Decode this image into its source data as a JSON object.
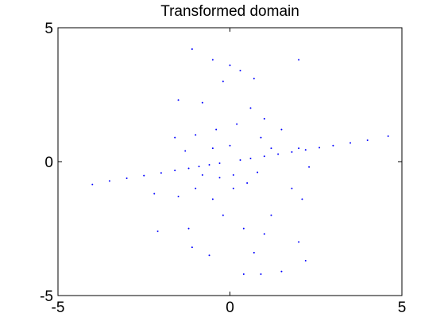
{
  "chart_data": {
    "type": "scatter",
    "title": "Transformed domain",
    "xlabel": "",
    "ylabel": "",
    "xlim": [
      -5,
      5
    ],
    "ylim": [
      -5,
      5
    ],
    "grid": false,
    "colors": {
      "points": "#0000ff",
      "axes": "#000000",
      "background": "#ffffff"
    },
    "xticks": [
      {
        "value": -5,
        "label": "-5"
      },
      {
        "value": 0,
        "label": "0"
      },
      {
        "value": 5,
        "label": "5"
      }
    ],
    "yticks": [
      {
        "value": -5,
        "label": "-5"
      },
      {
        "value": 0,
        "label": "0"
      },
      {
        "value": 5,
        "label": "5"
      }
    ],
    "series": [
      {
        "points": [
          [
            -4.0,
            -0.85
          ],
          [
            -3.5,
            -0.72
          ],
          [
            -3.0,
            -0.62
          ],
          [
            -2.5,
            -0.52
          ],
          [
            -2.0,
            -0.42
          ],
          [
            -1.6,
            -0.33
          ],
          [
            -1.2,
            -0.25
          ],
          [
            -0.9,
            -0.18
          ],
          [
            -0.6,
            -0.12
          ],
          [
            -0.3,
            -0.06
          ],
          [
            0.3,
            0.06
          ],
          [
            0.6,
            0.12
          ],
          [
            1.0,
            0.2
          ],
          [
            1.4,
            0.28
          ],
          [
            1.8,
            0.36
          ],
          [
            2.2,
            0.44
          ],
          [
            2.6,
            0.52
          ],
          [
            3.0,
            0.6
          ],
          [
            3.5,
            0.7
          ],
          [
            4.0,
            0.8
          ],
          [
            4.6,
            0.95
          ],
          [
            2.0,
            3.8
          ],
          [
            -1.1,
            4.2
          ],
          [
            -0.5,
            3.8
          ],
          [
            0.0,
            3.6
          ],
          [
            0.3,
            3.4
          ],
          [
            0.7,
            3.1
          ],
          [
            -0.2,
            3.0
          ],
          [
            -0.8,
            2.2
          ],
          [
            -1.5,
            2.3
          ],
          [
            0.6,
            2.0
          ],
          [
            1.0,
            1.6
          ],
          [
            1.5,
            1.2
          ],
          [
            0.2,
            1.4
          ],
          [
            -0.4,
            1.2
          ],
          [
            -1.0,
            1.0
          ],
          [
            -1.6,
            0.9
          ],
          [
            0.9,
            0.9
          ],
          [
            2.0,
            0.5
          ],
          [
            2.3,
            -0.2
          ],
          [
            1.8,
            -1.0
          ],
          [
            2.1,
            -1.4
          ],
          [
            1.2,
            -2.0
          ],
          [
            1.0,
            -2.7
          ],
          [
            2.0,
            -3.0
          ],
          [
            2.2,
            -3.7
          ],
          [
            1.5,
            -4.1
          ],
          [
            0.7,
            -3.4
          ],
          [
            0.4,
            -2.5
          ],
          [
            -0.2,
            -2.0
          ],
          [
            -0.5,
            -1.4
          ],
          [
            -1.0,
            -1.0
          ],
          [
            -1.5,
            -1.3
          ],
          [
            -2.2,
            -1.2
          ],
          [
            -2.1,
            -2.6
          ],
          [
            -1.2,
            -2.5
          ],
          [
            -1.1,
            -3.2
          ],
          [
            -0.6,
            -3.5
          ],
          [
            0.4,
            -4.2
          ],
          [
            0.9,
            -4.2
          ],
          [
            0.1,
            -1.0
          ],
          [
            0.5,
            -0.8
          ],
          [
            -0.3,
            -0.6
          ],
          [
            0.8,
            -0.4
          ],
          [
            -0.8,
            -0.5
          ],
          [
            1.2,
            0.5
          ],
          [
            -1.3,
            0.4
          ],
          [
            0.0,
            0.6
          ],
          [
            0.1,
            -0.5
          ],
          [
            -0.5,
            0.5
          ]
        ]
      }
    ]
  }
}
